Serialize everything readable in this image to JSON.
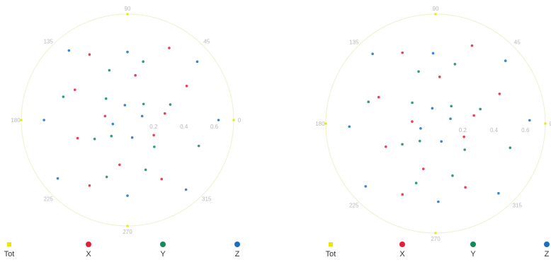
{
  "chart_data": [
    {
      "type": "polar-scatter",
      "panel": "left",
      "angle_ticks": [
        "0",
        "45",
        "90",
        "135",
        "180",
        "225",
        "270",
        "315"
      ],
      "radial_ticks": [
        "0.2",
        "0.4",
        "0.6"
      ],
      "rlim": [
        0,
        0.7
      ],
      "legend_placement": "bottom",
      "series": [
        {
          "name": "Tot",
          "color": "#e8e800",
          "marker": "square"
        },
        {
          "name": "X",
          "color": "#e0203a",
          "marker": "circle"
        },
        {
          "name": "Y",
          "color": "#128a58",
          "marker": "circle"
        },
        {
          "name": "Z",
          "color": "#1a6fc2",
          "marker": "circle"
        }
      ],
      "points": {
        "Tot": [
          [
            0,
            0.7
          ],
          [
            90,
            0.7
          ],
          [
            180,
            0.7
          ],
          [
            270,
            0.7
          ]
        ],
        "X": [
          [
            30,
            0.45
          ],
          [
            60,
            0.55
          ],
          [
            120,
            0.5
          ],
          [
            150,
            0.4
          ],
          [
            200,
            0.35
          ],
          [
            240,
            0.5
          ],
          [
            300,
            0.45
          ],
          [
            330,
            0.2
          ],
          [
            10,
            0.25
          ],
          [
            80,
            0.3
          ],
          [
            170,
            0.15
          ],
          [
            260,
            0.3
          ]
        ],
        "Y": [
          [
            20,
            0.3
          ],
          [
            75,
            0.4
          ],
          [
            110,
            0.35
          ],
          [
            160,
            0.45
          ],
          [
            210,
            0.25
          ],
          [
            250,
            0.4
          ],
          [
            290,
            0.35
          ],
          [
            340,
            0.5
          ],
          [
            45,
            0.15
          ],
          [
            135,
            0.2
          ],
          [
            225,
            0.15
          ],
          [
            315,
            0.25
          ]
        ],
        "Z": [
          [
            0,
            0.6
          ],
          [
            40,
            0.6
          ],
          [
            90,
            0.45
          ],
          [
            130,
            0.6
          ],
          [
            180,
            0.55
          ],
          [
            220,
            0.6
          ],
          [
            270,
            0.5
          ],
          [
            310,
            0.6
          ],
          [
            15,
            0.1
          ],
          [
            100,
            0.1
          ],
          [
            195,
            0.1
          ],
          [
            285,
            0.12
          ]
        ]
      }
    },
    {
      "type": "polar-scatter",
      "panel": "right",
      "angle_ticks": [
        "0",
        "45",
        "90",
        "135",
        "180",
        "225",
        "270",
        "315"
      ],
      "radial_ticks": [
        "0.2",
        "0.4",
        "0.6"
      ],
      "rlim": [
        0,
        0.7
      ],
      "legend_placement": "bottom",
      "series": [
        {
          "name": "Tot",
          "color": "#e8e800",
          "marker": "square"
        },
        {
          "name": "X",
          "color": "#e0203a",
          "marker": "circle"
        },
        {
          "name": "Y",
          "color": "#128a58",
          "marker": "circle"
        },
        {
          "name": "Z",
          "color": "#1a6fc2",
          "marker": "circle"
        }
      ],
      "points": {
        "Tot": [
          [
            0,
            0.7
          ],
          [
            90,
            0.7
          ],
          [
            180,
            0.7
          ],
          [
            270,
            0.7
          ]
        ],
        "X": [
          [
            25,
            0.45
          ],
          [
            65,
            0.55
          ],
          [
            115,
            0.5
          ],
          [
            155,
            0.4
          ],
          [
            205,
            0.35
          ],
          [
            245,
            0.5
          ],
          [
            295,
            0.45
          ],
          [
            335,
            0.2
          ],
          [
            12,
            0.25
          ],
          [
            85,
            0.3
          ],
          [
            175,
            0.15
          ],
          [
            255,
            0.3
          ]
        ],
        "Y": [
          [
            18,
            0.3
          ],
          [
            72,
            0.4
          ],
          [
            108,
            0.35
          ],
          [
            162,
            0.45
          ],
          [
            212,
            0.25
          ],
          [
            252,
            0.4
          ],
          [
            288,
            0.35
          ],
          [
            342,
            0.5
          ],
          [
            48,
            0.15
          ],
          [
            138,
            0.2
          ],
          [
            228,
            0.15
          ],
          [
            318,
            0.25
          ]
        ],
        "Z": [
          [
            2,
            0.6
          ],
          [
            42,
            0.6
          ],
          [
            92,
            0.45
          ],
          [
            132,
            0.6
          ],
          [
            182,
            0.55
          ],
          [
            222,
            0.6
          ],
          [
            272,
            0.5
          ],
          [
            312,
            0.6
          ],
          [
            18,
            0.1
          ],
          [
            102,
            0.1
          ],
          [
            198,
            0.1
          ],
          [
            288,
            0.12
          ]
        ]
      }
    }
  ]
}
